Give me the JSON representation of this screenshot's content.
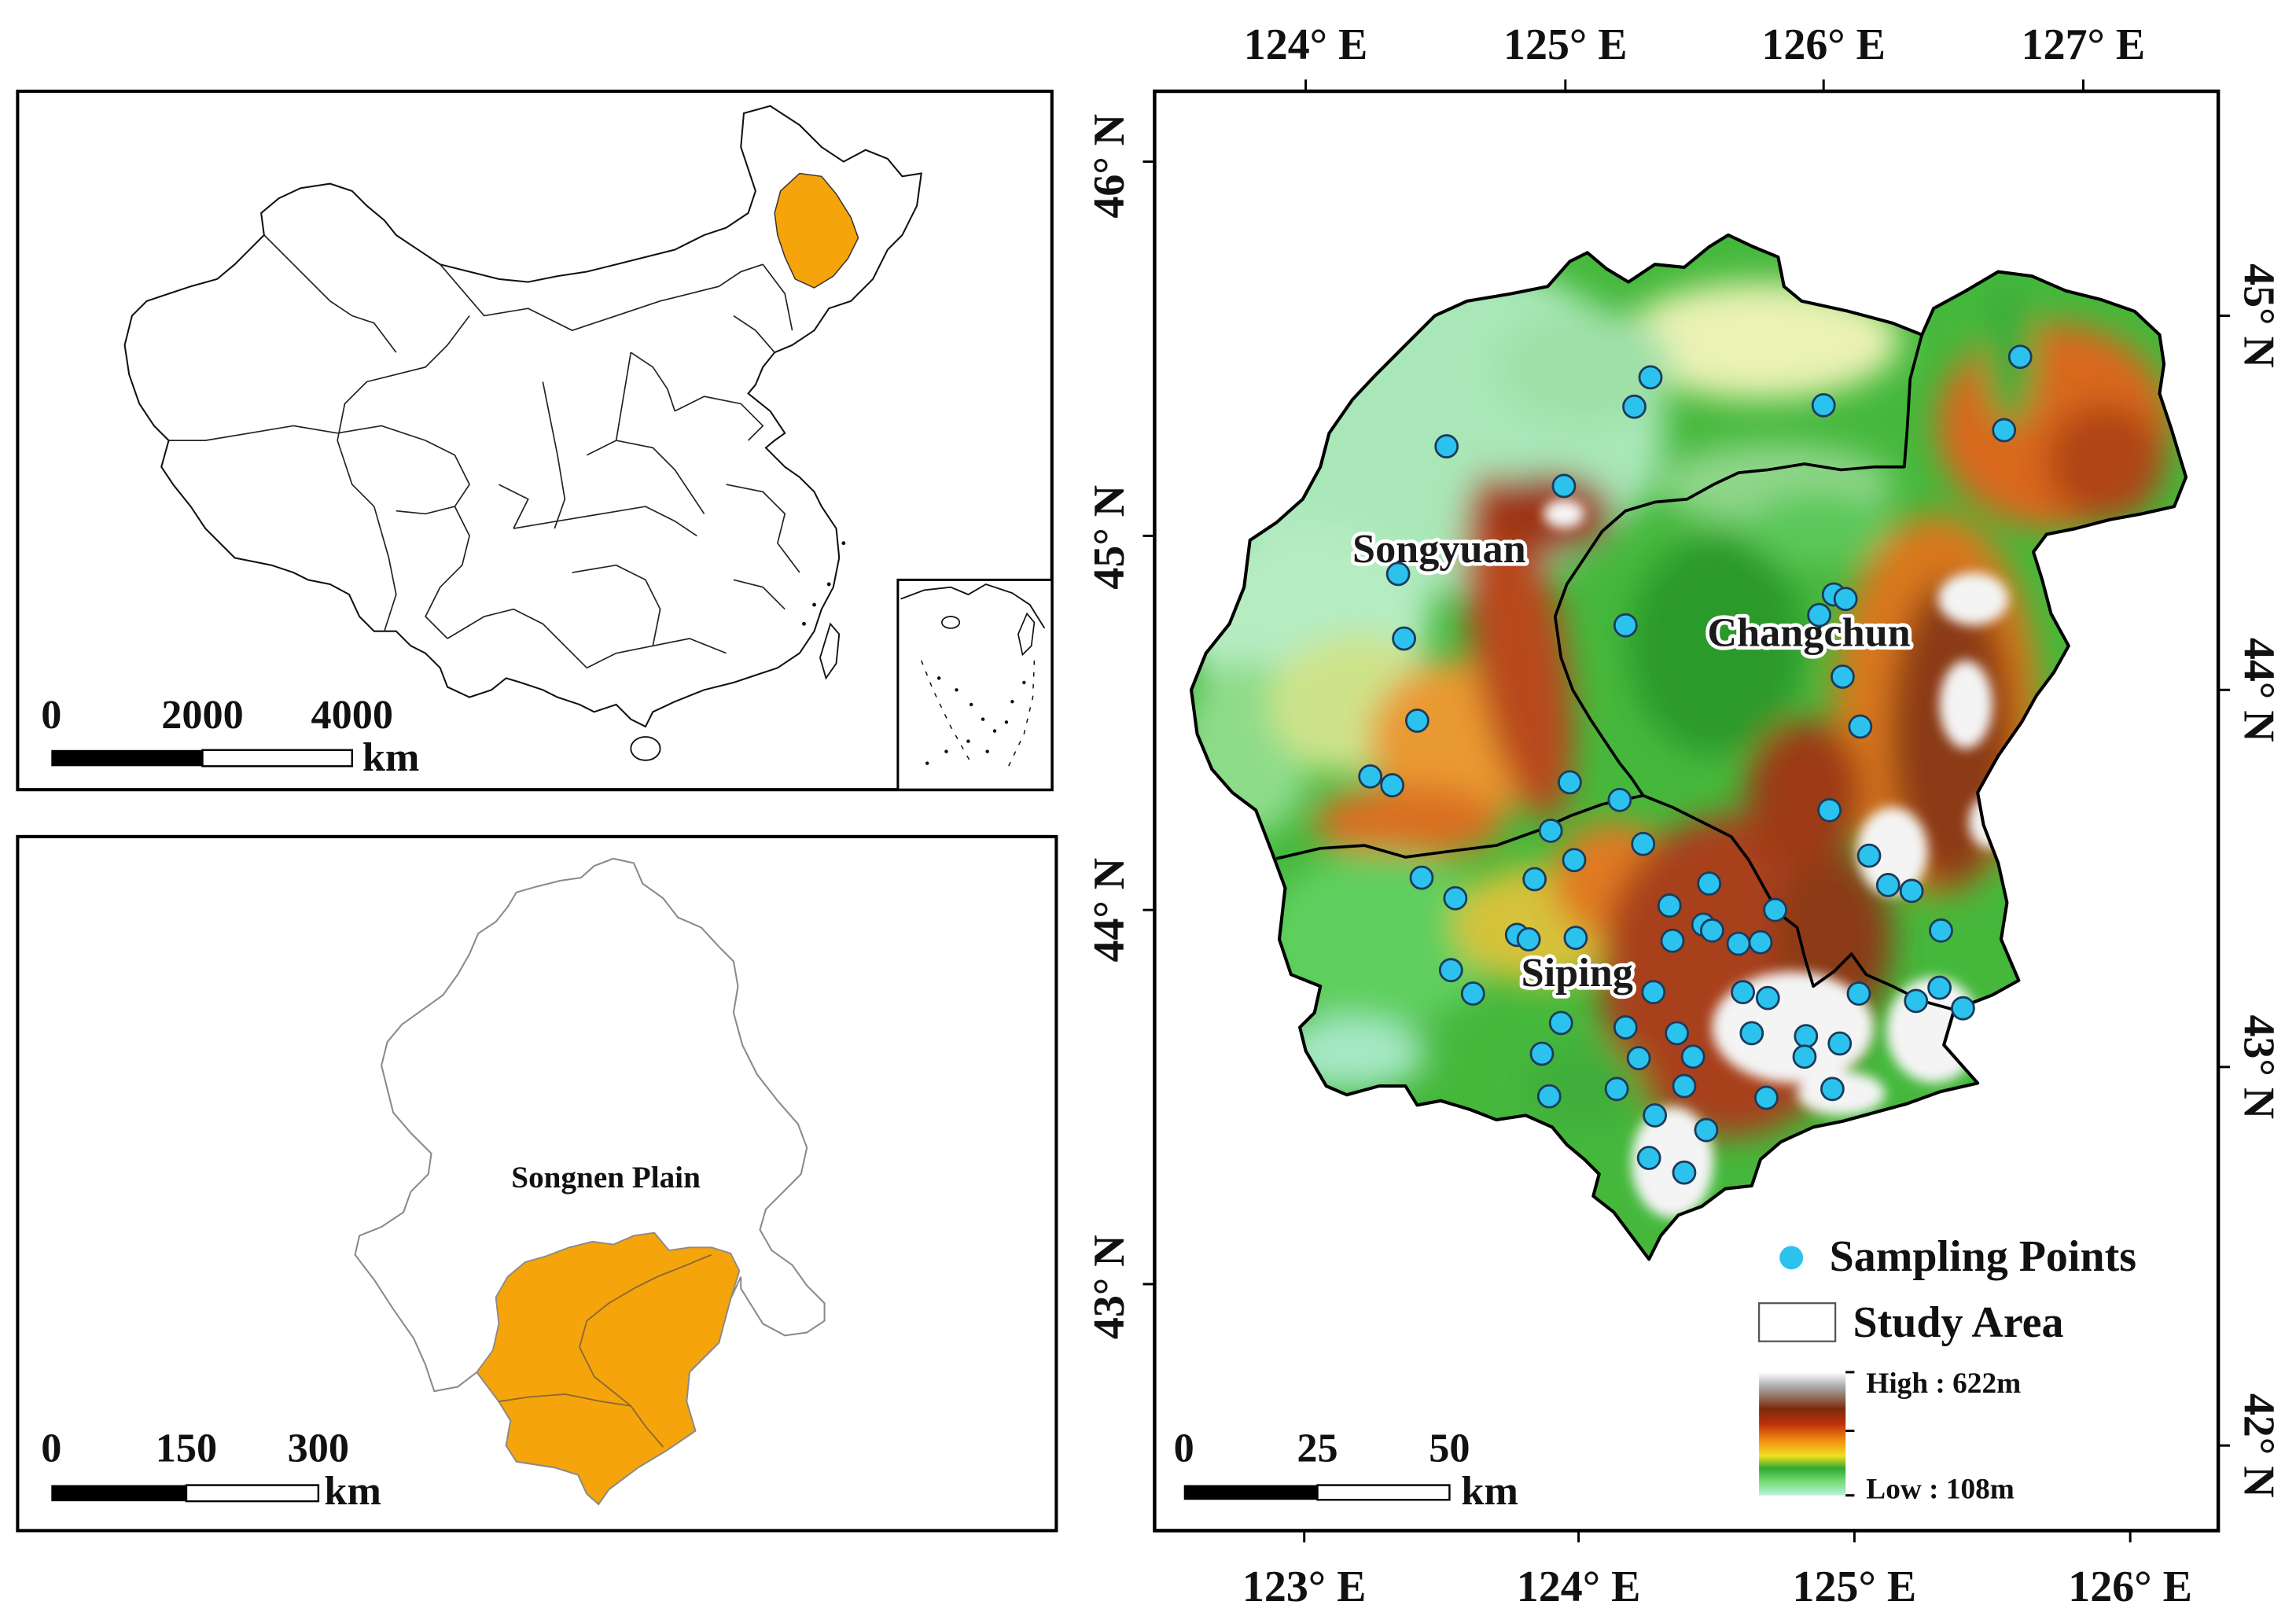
{
  "colors": {
    "highlight": "#f5a40c",
    "sampling_point": "#2bc3ee",
    "frame": "#000000",
    "elevation_ramp": [
      "#ffffff",
      "#a8a8a8",
      "#7a2a0a",
      "#c0300a",
      "#f08a10",
      "#f0e020",
      "#30a830",
      "#6fd86f",
      "#b8f4d8"
    ]
  },
  "china_map": {
    "scale": {
      "ticks": [
        "0",
        "2000",
        "4000"
      ],
      "unit": "km"
    }
  },
  "songnen_map": {
    "label": "Songnen Plain",
    "scale": {
      "ticks": [
        "0",
        "150",
        "300"
      ],
      "unit": "km"
    }
  },
  "study_map": {
    "top_axis": [
      "124° E",
      "125° E",
      "126° E",
      "127° E"
    ],
    "bottom_axis": [
      "123° E",
      "124° E",
      "125° E",
      "126° E"
    ],
    "left_axis": [
      "46° N",
      "45° N",
      "44° N",
      "43° N"
    ],
    "right_axis": [
      "45° N",
      "44° N",
      "43° N",
      "42° N"
    ],
    "regions": {
      "songyuan": "Songyuan",
      "changchun": "Changchun",
      "siping": "Siping"
    },
    "legend": {
      "sampling_points": "Sampling Points",
      "study_area": "Study Area",
      "elevation_high": "High : 622m",
      "elevation_low": "Low : 108m"
    },
    "scale": {
      "ticks": [
        "0",
        "25",
        "50"
      ],
      "unit": "km"
    }
  }
}
